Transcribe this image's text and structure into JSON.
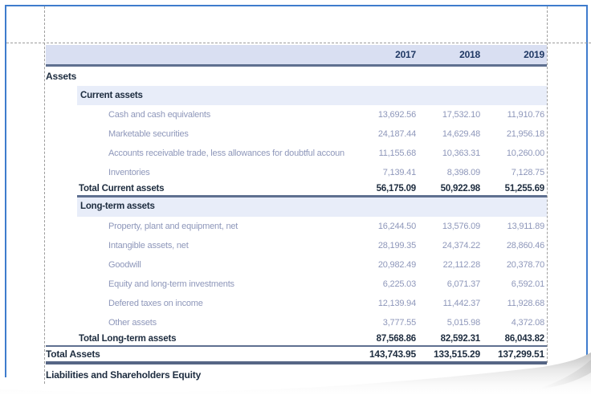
{
  "colors": {
    "page_border": "#3f7ccd",
    "guide": "#9d9d9d",
    "header_band_bg": "#d9dff2",
    "group_band_bg": "#e8edf9",
    "heavy_border": "#5f7090",
    "grand_border": "#566685",
    "dark_text": "#1d2c3f",
    "year_text": "#1f3864",
    "muted_text": "#8e97ba"
  },
  "report": {
    "columns": [
      "2017",
      "2018",
      "2019"
    ],
    "rows": [
      {
        "type": "section",
        "label": "Assets",
        "values": [
          "",
          "",
          ""
        ]
      },
      {
        "type": "group",
        "label": "Current assets",
        "values": [
          "",
          "",
          ""
        ]
      },
      {
        "type": "detail",
        "label": "Cash and cash equivalents",
        "values": [
          "13,692.56",
          "17,532.10",
          "11,910.76"
        ]
      },
      {
        "type": "detail",
        "label": "Marketable securities",
        "values": [
          "24,187.44",
          "14,629.48",
          "21,956.18"
        ]
      },
      {
        "type": "detail",
        "label": "Accounts receivable trade, less allowances for doubtful accoun",
        "values": [
          "11,155.68",
          "10,363.31",
          "10,260.00"
        ]
      },
      {
        "type": "detail",
        "label": "Inventories",
        "values": [
          "7,139.41",
          "8,398.09",
          "7,128.75"
        ]
      },
      {
        "type": "total",
        "label": "Total Current assets",
        "values": [
          "56,175.09",
          "50,922.98",
          "51,255.69"
        ]
      },
      {
        "type": "group-bordered",
        "label": "Long-term assets",
        "values": [
          "",
          "",
          ""
        ]
      },
      {
        "type": "detail",
        "label": "Property, plant and equipment, net",
        "values": [
          "16,244.50",
          "13,576.09",
          "13,911.89"
        ]
      },
      {
        "type": "detail",
        "label": "Intangible assets, net",
        "values": [
          "28,199.35",
          "24,374.22",
          "28,860.46"
        ]
      },
      {
        "type": "detail",
        "label": "Goodwill",
        "values": [
          "20,982.49",
          "22,112.28",
          "20,378.70"
        ]
      },
      {
        "type": "detail",
        "label": "Equity and long-term investments",
        "values": [
          "6,225.03",
          "6,071.37",
          "6,592.01"
        ]
      },
      {
        "type": "detail",
        "label": "Defered taxes on income",
        "values": [
          "12,139.94",
          "11,442.37",
          "11,928.68"
        ]
      },
      {
        "type": "detail",
        "label": "Other assets",
        "values": [
          "3,777.55",
          "5,015.98",
          "4,372.08"
        ]
      },
      {
        "type": "total",
        "label": "Total Long-term assets",
        "values": [
          "87,568.86",
          "82,592.31",
          "86,043.82"
        ]
      },
      {
        "type": "grand",
        "label": "Total Assets",
        "values": [
          "143,743.95",
          "133,515.29",
          "137,299.51"
        ]
      },
      {
        "type": "section-bottom",
        "label": "Liabilities and Shareholders Equity",
        "values": [
          "",
          "",
          ""
        ]
      }
    ]
  }
}
